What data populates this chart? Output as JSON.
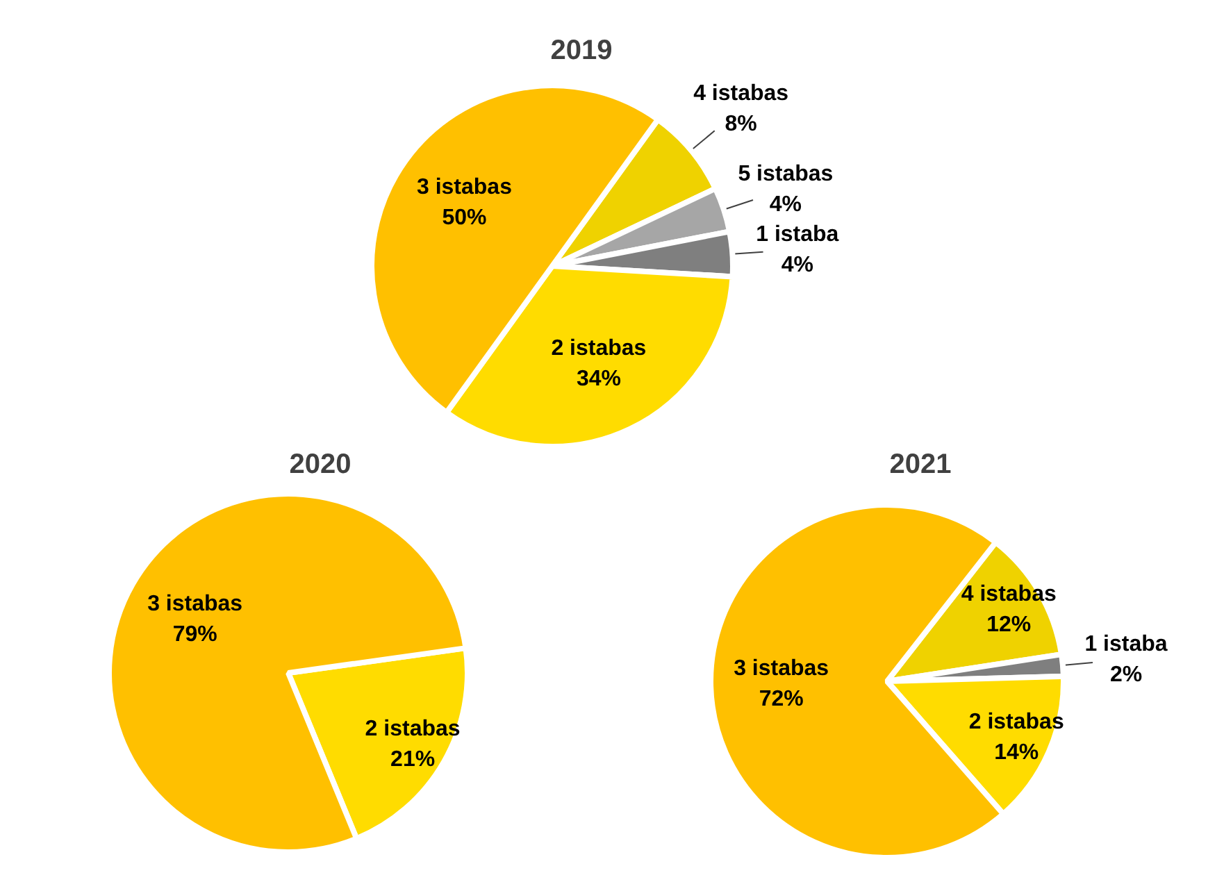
{
  "chart_data": [
    {
      "type": "pie",
      "title": "2019",
      "categories": [
        "4 istabas",
        "5 istabas",
        "1 istaba",
        "2 istabas",
        "3 istabas"
      ],
      "values": [
        8,
        4,
        4,
        34,
        50
      ],
      "colors": [
        "#EFD200",
        "#A6A6A6",
        "#7F7F7F",
        "#FFDC00",
        "#FFC000"
      ],
      "value_labels": [
        "8%",
        "4%",
        "4%",
        "34%",
        "50%"
      ]
    },
    {
      "type": "pie",
      "title": "2020",
      "categories": [
        "2 istabas",
        "3 istabas"
      ],
      "values": [
        21,
        79
      ],
      "colors": [
        "#FFDC00",
        "#FFC000"
      ],
      "value_labels": [
        "21%",
        "79%"
      ]
    },
    {
      "type": "pie",
      "title": "2021",
      "categories": [
        "4 istabas",
        "1 istaba",
        "2 istabas",
        "3 istabas"
      ],
      "values": [
        12,
        2,
        14,
        72
      ],
      "colors": [
        "#EFD200",
        "#7F7F7F",
        "#FFDC00",
        "#FFC000"
      ],
      "value_labels": [
        "12%",
        "2%",
        "14%",
        "72%"
      ]
    }
  ]
}
